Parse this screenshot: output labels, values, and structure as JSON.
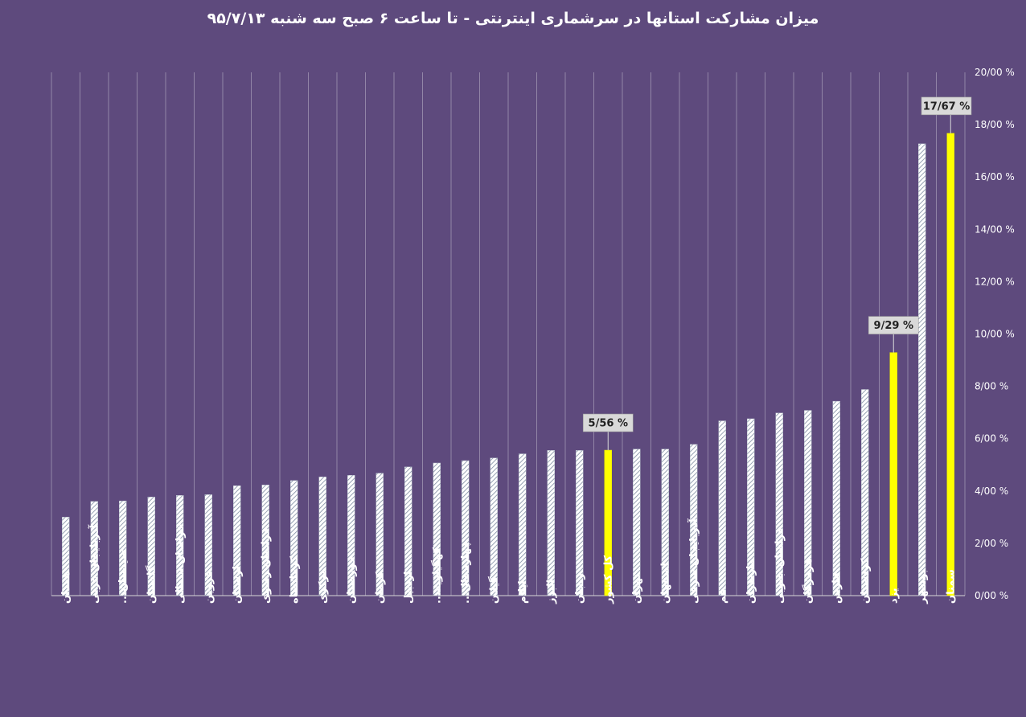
{
  "chart_data": {
    "type": "bar",
    "title": "میزان مشارکت استانها در سرشماری اینترنتی - تا ساعت ۶ صبح  سه شنبه ۹۵/۷/۱۳",
    "ylim": [
      0,
      20
    ],
    "yticks": [
      0,
      2,
      4,
      6,
      8,
      10,
      12,
      14,
      16,
      18,
      20
    ],
    "ytick_labels": [
      "0/00 %",
      "2/00 %",
      "4/00 %",
      "6/00 %",
      "8/00 %",
      "10/00 %",
      "12/00 %",
      "14/00 %",
      "16/00 %",
      "18/00 %",
      "20/00 %"
    ],
    "grid": true,
    "categories": [
      "همدان",
      "آذربایجان غربی",
      "سیستان...",
      "گلستان",
      "خراسان شمالی",
      "قزوین",
      "لرستان",
      "خراسان رضوی",
      "کرمانشاه",
      "مرکزی",
      "خوزستان",
      "کرمان",
      "اردبیل",
      "کهگیلویه...",
      "چهارمحال...",
      "گیلان",
      "ایلام",
      "البرز",
      "زنجان",
      "کل کشور",
      "تهران",
      "اصفهان",
      "آذربایجان شرقی",
      "قم",
      "مازندران",
      "خراسان جنوبی",
      "هرمزگان",
      "فارس",
      "کردستان",
      "یزد",
      "بوشهر",
      "سمنان"
    ],
    "values": [
      3.0,
      3.6,
      3.62,
      3.77,
      3.83,
      3.86,
      4.2,
      4.23,
      4.4,
      4.54,
      4.6,
      4.68,
      4.92,
      5.07,
      5.16,
      5.26,
      5.42,
      5.55,
      5.55,
      5.56,
      5.6,
      5.6,
      5.78,
      6.68,
      6.76,
      6.98,
      7.08,
      7.43,
      7.88,
      9.29,
      17.27,
      17.67
    ],
    "highlighted": [
      "کل کشور",
      "یزد",
      "سمنان"
    ],
    "data_labels": [
      {
        "category": "کل کشور",
        "text": "5/56 %"
      },
      {
        "category": "یزد",
        "text": "9/29 %"
      },
      {
        "category": "سمنان",
        "text": "17/67 %"
      }
    ],
    "colors": {
      "background": "#5e4a7d",
      "highlight": "#ffff00",
      "bar_pattern": "#cfd6e0",
      "grid": "#ffffff",
      "label_box": "#d9d9d9"
    }
  }
}
